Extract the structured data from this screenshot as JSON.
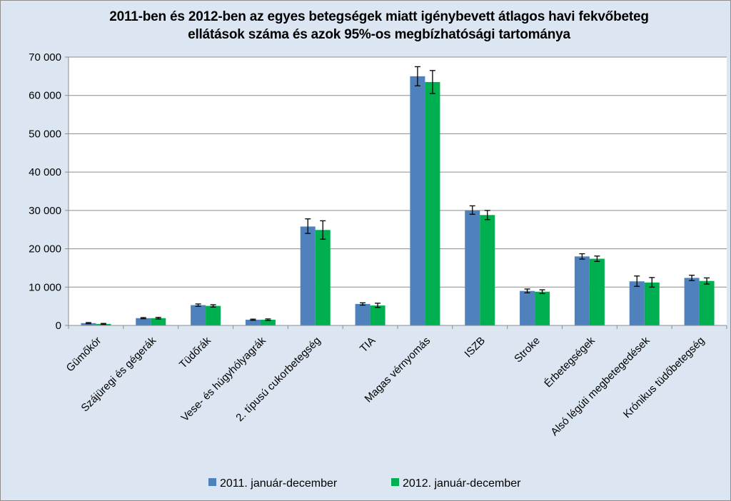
{
  "chart_data": {
    "type": "bar",
    "title": "2011-ben és 2012-ben az egyes betegségek miatt igénybevett átlagos havi fekvőbeteg\nellátások száma és azok 95%-os megbízhatósági tartománya",
    "xlabel": "",
    "ylabel": "",
    "ylim": [
      0,
      70000
    ],
    "yticks": [
      0,
      10000,
      20000,
      30000,
      40000,
      50000,
      60000,
      70000
    ],
    "ytick_labels": [
      "0",
      "10 000",
      "20 000",
      "30 000",
      "40 000",
      "50 000",
      "60 000",
      "70 000"
    ],
    "grid": true,
    "legend_position": "bottom",
    "categories": [
      "Gümőkór",
      "Szájüregi és gégerák",
      "Tüdőrák",
      "Vese- és húgyhólyagrák",
      "2. típusú cukorbetegség",
      "TIA",
      "Magas vérnyomás",
      "ISZB",
      "Stroke",
      "Érbetegségek",
      "Alsó légúti megbetegedések",
      "Krónikus tüdőbetegség"
    ],
    "series": [
      {
        "name": "2011. január-december",
        "color": "#4f81bd",
        "values": [
          600,
          1900,
          5300,
          1500,
          25800,
          5600,
          65000,
          30000,
          9000,
          18000,
          11500,
          12400
        ],
        "error_low": [
          450,
          1750,
          5000,
          1350,
          24000,
          5300,
          62500,
          29000,
          8500,
          17300,
          10200,
          11700
        ],
        "error_high": [
          750,
          2050,
          5600,
          1650,
          27800,
          5900,
          67500,
          31200,
          9500,
          18700,
          12900,
          13100
        ]
      },
      {
        "name": "2012. január-december",
        "color": "#00b050",
        "values": [
          400,
          1900,
          5100,
          1500,
          24900,
          5200,
          63500,
          28800,
          8800,
          17400,
          11200,
          11600
        ],
        "error_low": [
          280,
          1700,
          4800,
          1300,
          22500,
          4700,
          60500,
          27600,
          8300,
          16700,
          10000,
          10800
        ],
        "error_high": [
          520,
          2100,
          5400,
          1700,
          27300,
          5800,
          66500,
          30000,
          9300,
          18100,
          12500,
          12400
        ]
      }
    ]
  }
}
